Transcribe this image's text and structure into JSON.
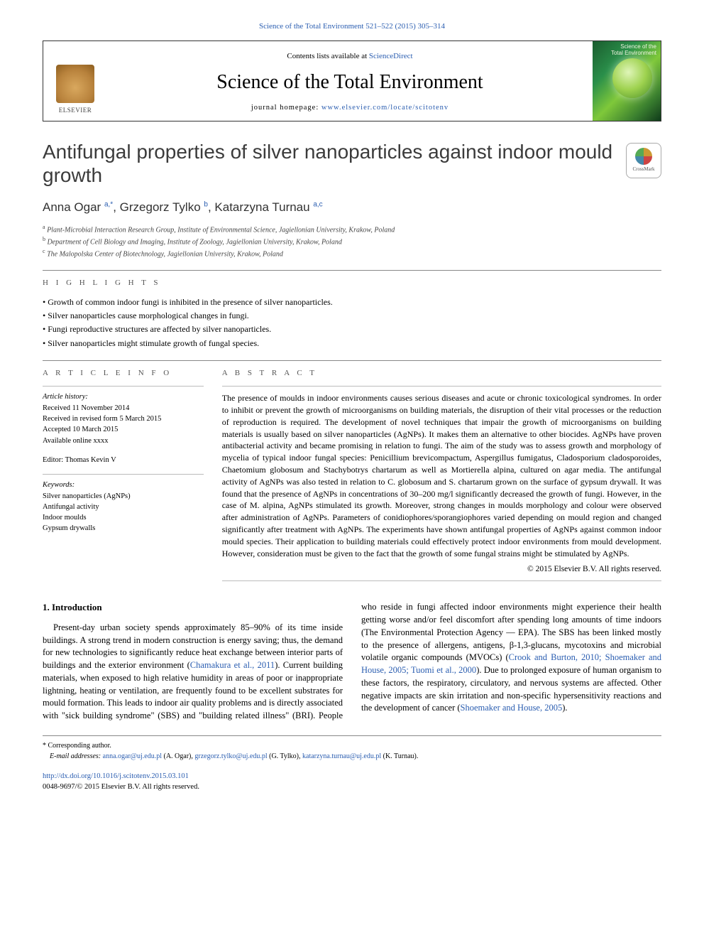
{
  "topCitation": "Science of the Total Environment 521–522 (2015) 305–314",
  "header": {
    "contentsPrefix": "Contents lists available at ",
    "contentsLink": "ScienceDirect",
    "journalName": "Science of the Total Environment",
    "homepagePrefix": "journal homepage: ",
    "homepageLink": "www.elsevier.com/locate/scitotenv",
    "publisher": "ELSEVIER",
    "coverLabel1": "Science of the",
    "coverLabel2": "Total Environment"
  },
  "title": "Antifungal properties of silver nanoparticles against indoor mould growth",
  "crossmark": "CrossMark",
  "authors": {
    "a1": {
      "name": "Anna Ogar ",
      "sup": "a,",
      "star": "*"
    },
    "a2": {
      "name": ", Grzegorz Tylko ",
      "sup": "b"
    },
    "a3": {
      "name": ", Katarzyna Turnau ",
      "sup": "a,c"
    }
  },
  "affiliations": {
    "a": "Plant-Microbial Interaction Research Group, Institute of Environmental Science, Jagiellonian University, Krakow, Poland",
    "b": "Department of Cell Biology and Imaging, Institute of Zoology, Jagiellonian University, Krakow, Poland",
    "c": "The Malopolska Center of Biotechnology, Jagiellonian University, Krakow, Poland"
  },
  "highlights": {
    "head": "H I G H L I G H T S",
    "items": [
      "Growth of common indoor fungi is inhibited in the presence of silver nanoparticles.",
      "Silver nanoparticles cause morphological changes in fungi.",
      "Fungi reproductive structures are affected by silver nanoparticles.",
      "Silver nanoparticles might stimulate growth of fungal species."
    ]
  },
  "articleInfo": {
    "head": "A R T I C L E   I N F O",
    "histLabel": "Article history:",
    "received": "Received 11 November 2014",
    "revised": "Received in revised form 5 March 2015",
    "accepted": "Accepted 10 March 2015",
    "online": "Available online xxxx",
    "editorLabel": "Editor: Thomas Kevin V",
    "kwLabel": "Keywords:",
    "kw1": "Silver nanoparticles (AgNPs)",
    "kw2": "Antifungal activity",
    "kw3": "Indoor moulds",
    "kw4": "Gypsum drywalls"
  },
  "abstract": {
    "head": "A B S T R A C T",
    "text": "The presence of moulds in indoor environments causes serious diseases and acute or chronic toxicological syndromes. In order to inhibit or prevent the growth of microorganisms on building materials, the disruption of their vital processes or the reduction of reproduction is required. The development of novel techniques that impair the growth of microorganisms on building materials is usually based on silver nanoparticles (AgNPs). It makes them an alternative to other biocides. AgNPs have proven antibacterial activity and became promising in relation to fungi. The aim of the study was to assess growth and morphology of mycelia of typical indoor fungal species: Penicillium brevicompactum, Aspergillus fumigatus, Cladosporium cladosporoides, Chaetomium globosum and Stachybotrys chartarum as well as Mortierella alpina, cultured on agar media. The antifungal activity of AgNPs was also tested in relation to C. globosum and S. chartarum grown on the surface of gypsum drywall. It was found that the presence of AgNPs in concentrations of 30–200 mg/l significantly decreased the growth of fungi. However, in the case of M. alpina, AgNPs stimulated its growth. Moreover, strong changes in moulds morphology and colour were observed after administration of AgNPs. Parameters of conidiophores/sporangiophores varied depending on mould region and changed significantly after treatment with AgNPs. The experiments have shown antifungal properties of AgNPs against common indoor mould species. Their application to building materials could effectively protect indoor environments from mould development. However, consideration must be given to the fact that the growth of some fungal strains might be stimulated by AgNPs.",
    "copyright": "© 2015 Elsevier B.V. All rights reserved."
  },
  "intro": {
    "head": "1. Introduction",
    "p1a": "Present-day urban society spends approximately 85–90% of its time inside buildings. A strong trend in modern construction is energy saving; thus, the demand for new technologies to significantly reduce heat exchange between interior parts of buildings and the exterior environment (",
    "p1ref": "Chamakura et al., 2011",
    "p1b": "). Current building materials, when exposed to high relative humidity in areas of poor or inappropriate lightning, heating or ventilation, are frequently found to be excellent substrates for mould formation. This leads to indoor air quality problems and is directly associated with \"sick building syndrome\" (SBS) and \"building related illness\" (BRI). People who reside in fungi affected indoor environments might experience their health getting worse and/or feel discomfort after spending long amounts of time indoors (The Environmental Protection Agency — EPA). The SBS has been linked mostly to the presence of allergens, antigens, β-1,3-glucans, mycotoxins and microbial volatile organic compounds (MVOCs) (",
    "p1ref2": "Crook and Burton, 2010; Shoemaker and House, 2005; Tuomi et al., 2000",
    "p1c": "). Due to prolonged exposure of human organism to these factors, the respiratory, circulatory, and nervous systems are affected. Other negative impacts are skin irritation and non-specific hypersensitivity reactions and the development of cancer (",
    "p1ref3": "Shoemaker and House, 2005",
    "p1d": ")."
  },
  "footnotes": {
    "corr": "* Corresponding author.",
    "emailsLabel": "E-mail addresses: ",
    "e1": "anna.ogar@uj.edu.pl",
    "n1": " (A. Ogar), ",
    "e2": "grzegorz.tylko@uj.edu.pl",
    "n2": " (G. Tylko), ",
    "e3": "katarzyna.turnau@uj.edu.pl",
    "n3": " (K. Turnau)."
  },
  "footer": {
    "doi": "http://dx.doi.org/10.1016/j.scitotenv.2015.03.101",
    "issn": "0048-9697/© 2015 Elsevier B.V. All rights reserved."
  },
  "colors": {
    "link": "#2a5db0",
    "text": "#000000",
    "heading": "#3b3b3b"
  }
}
